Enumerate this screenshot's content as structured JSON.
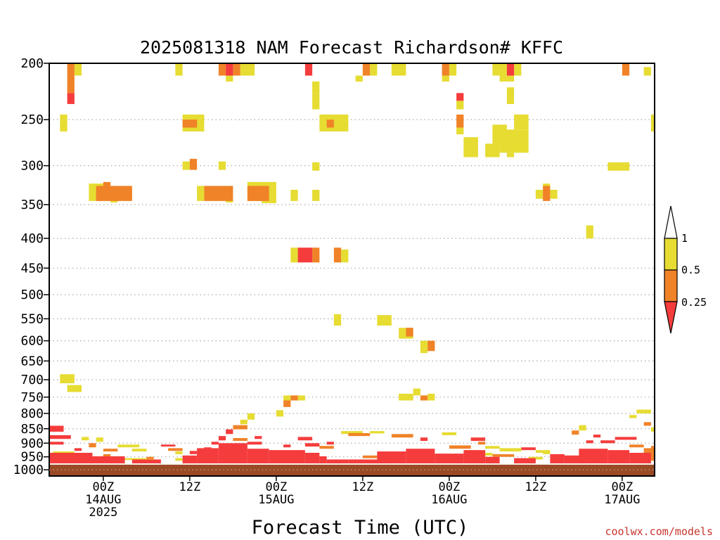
{
  "chart_data": {
    "type": "heatmap",
    "title": "2025081318 NAM Forecast Richardson# KFFC",
    "xlabel": "Forecast Time (UTC)",
    "ylabel": "",
    "credit": "coolwx.com/models",
    "y_axis": {
      "scale": "log",
      "range": [
        1025,
        200
      ],
      "ticks": [
        200,
        250,
        300,
        350,
        400,
        450,
        500,
        550,
        600,
        650,
        700,
        750,
        800,
        850,
        900,
        950,
        1000
      ]
    },
    "x_axis": {
      "unit": "forecast hour from 2025081318",
      "range": [
        -1.5,
        82.5
      ],
      "ticks": [
        {
          "hour": 6,
          "lines": [
            "00Z",
            "14AUG",
            "2025"
          ]
        },
        {
          "hour": 18,
          "lines": [
            "12Z",
            "",
            ""
          ]
        },
        {
          "hour": 30,
          "lines": [
            "00Z",
            "15AUG",
            ""
          ]
        },
        {
          "hour": 42,
          "lines": [
            "12Z",
            "",
            ""
          ]
        },
        {
          "hour": 54,
          "lines": [
            "00Z",
            "16AUG",
            ""
          ]
        },
        {
          "hour": 66,
          "lines": [
            "12Z",
            "",
            ""
          ]
        },
        {
          "hour": 78,
          "lines": [
            "00Z",
            "17AUG",
            ""
          ]
        }
      ]
    },
    "gridlines": "dotted at each pressure tick",
    "ground_color": "#9a4a24",
    "ground_pressure": 980,
    "colorbar": {
      "levels": [
        "1",
        "0.5",
        "0.25"
      ],
      "colors": {
        "lt025": "#f53c3c",
        "p025_05": "#f08228",
        "p05_1": "#e6dc32"
      }
    },
    "cells_encoding": "[forecast_hour_start, hours_wide, pressure_top_hPa, pressure_bottom_hPa, class] where class 1=<0.25, 2=0.25-0.5, 3=0.5-1",
    "cells": [
      [
        1,
        1,
        200,
        210,
        2
      ],
      [
        1,
        1,
        210,
        225,
        2
      ],
      [
        1,
        1,
        225,
        235,
        1
      ],
      [
        2,
        1,
        200,
        210,
        3
      ],
      [
        0,
        1,
        245,
        262,
        3
      ],
      [
        16,
        1,
        200,
        210,
        3
      ],
      [
        17,
        3,
        245,
        262,
        3
      ],
      [
        18,
        1,
        250,
        258,
        2
      ],
      [
        17,
        2,
        250,
        258,
        2
      ],
      [
        22,
        1,
        200,
        210,
        2
      ],
      [
        23,
        1,
        200,
        210,
        1
      ],
      [
        24,
        1,
        200,
        210,
        2
      ],
      [
        23,
        1,
        210,
        215,
        3
      ],
      [
        25,
        2,
        200,
        210,
        3
      ],
      [
        34,
        1,
        200,
        210,
        1
      ],
      [
        35,
        1,
        215,
        225,
        3
      ],
      [
        35,
        1,
        225,
        240,
        3
      ],
      [
        36,
        4,
        245,
        262,
        3
      ],
      [
        37,
        1,
        250,
        258,
        2
      ],
      [
        42,
        1,
        200,
        210,
        2
      ],
      [
        43,
        1,
        200,
        210,
        3
      ],
      [
        41,
        1,
        210,
        215,
        3
      ],
      [
        46,
        2,
        200,
        210,
        3
      ],
      [
        53,
        1,
        200,
        210,
        2
      ],
      [
        54,
        1,
        200,
        210,
        3
      ],
      [
        53,
        1,
        210,
        215,
        3
      ],
      [
        55,
        1,
        225,
        232,
        1
      ],
      [
        55,
        1,
        232,
        240,
        3
      ],
      [
        55,
        1,
        245,
        258,
        2
      ],
      [
        55,
        1,
        258,
        265,
        3
      ],
      [
        56,
        2,
        268,
        290,
        3
      ],
      [
        60,
        2,
        200,
        210,
        3
      ],
      [
        61,
        1,
        210,
        215,
        3
      ],
      [
        62,
        1,
        200,
        210,
        1
      ],
      [
        63,
        1,
        200,
        210,
        3
      ],
      [
        62,
        1,
        210,
        215,
        3
      ],
      [
        62,
        1,
        220,
        235,
        3
      ],
      [
        63,
        2,
        245,
        260,
        3
      ],
      [
        60,
        2,
        255,
        275,
        3
      ],
      [
        59,
        2,
        275,
        290,
        3
      ],
      [
        61,
        4,
        260,
        285,
        3
      ],
      [
        62,
        1,
        285,
        290,
        3
      ],
      [
        78,
        1,
        200,
        210,
        2
      ],
      [
        81,
        1,
        203,
        210,
        3
      ],
      [
        82,
        1,
        245,
        262,
        3
      ],
      [
        17,
        1,
        295,
        305,
        3
      ],
      [
        18,
        1,
        292,
        305,
        2
      ],
      [
        22,
        1,
        295,
        305,
        3
      ],
      [
        35,
        1,
        296,
        306,
        3
      ],
      [
        76,
        3,
        296,
        306,
        3
      ],
      [
        5,
        5,
        325,
        345,
        2
      ],
      [
        6,
        1,
        320,
        327,
        2
      ],
      [
        4,
        2,
        322,
        345,
        3
      ],
      [
        9,
        1,
        330,
        340,
        3
      ],
      [
        7,
        1,
        340,
        347,
        3
      ],
      [
        20,
        4,
        325,
        345,
        2
      ],
      [
        19,
        1,
        325,
        345,
        3
      ],
      [
        23,
        1,
        342,
        347,
        3
      ],
      [
        26,
        3,
        325,
        345,
        2
      ],
      [
        26,
        4,
        320,
        345,
        3
      ],
      [
        28,
        2,
        342,
        348,
        3
      ],
      [
        32,
        1,
        330,
        345,
        3
      ],
      [
        35,
        1,
        330,
        345,
        3
      ],
      [
        67,
        1,
        325,
        345,
        2
      ],
      [
        66,
        1,
        330,
        342,
        3
      ],
      [
        68,
        1,
        330,
        342,
        3
      ],
      [
        67,
        1,
        322,
        327,
        3
      ],
      [
        73,
        1,
        380,
        400,
        3
      ],
      [
        32,
        1,
        415,
        440,
        3
      ],
      [
        33,
        2,
        415,
        440,
        1
      ],
      [
        35,
        1,
        415,
        440,
        2
      ],
      [
        38,
        1,
        415,
        440,
        2
      ],
      [
        39,
        1,
        418,
        440,
        3
      ],
      [
        38,
        1,
        540,
        565,
        3
      ],
      [
        44,
        2,
        542,
        565,
        3
      ],
      [
        47,
        2,
        570,
        595,
        3
      ],
      [
        48,
        1,
        570,
        590,
        2
      ],
      [
        50,
        1,
        600,
        630,
        3
      ],
      [
        51,
        1,
        600,
        625,
        2
      ],
      [
        0,
        2,
        685,
        710,
        3
      ],
      [
        1,
        2,
        715,
        735,
        3
      ],
      [
        47,
        2,
        740,
        760,
        3
      ],
      [
        49,
        1,
        725,
        745,
        3
      ],
      [
        50,
        1,
        745,
        760,
        2
      ],
      [
        51,
        1,
        740,
        760,
        3
      ],
      [
        31,
        1,
        745,
        765,
        3
      ],
      [
        32,
        1,
        745,
        760,
        2
      ],
      [
        33,
        1,
        745,
        760,
        3
      ],
      [
        31,
        1,
        760,
        780,
        2
      ],
      [
        30,
        1,
        790,
        810,
        3
      ],
      [
        26,
        1,
        800,
        820,
        3
      ],
      [
        25,
        1,
        820,
        835,
        3
      ],
      [
        24,
        2,
        838,
        852,
        2
      ],
      [
        23,
        1,
        852,
        868,
        1
      ],
      [
        80,
        2,
        788,
        800,
        3
      ],
      [
        79,
        1,
        805,
        815,
        3
      ],
      [
        81,
        1,
        828,
        840,
        2
      ],
      [
        82,
        1,
        845,
        860,
        3
      ],
      [
        72,
        1,
        838,
        856,
        3
      ],
      [
        71,
        1,
        856,
        870,
        2
      ],
      [
        -1.5,
        2,
        840,
        860,
        1
      ],
      [
        -1.5,
        3,
        872,
        885,
        1
      ],
      [
        -1.5,
        2,
        895,
        905,
        1
      ],
      [
        3,
        1,
        878,
        890,
        3
      ],
      [
        5,
        1,
        880,
        895,
        3
      ],
      [
        4,
        1,
        900,
        915,
        2
      ],
      [
        2,
        1,
        918,
        928,
        1
      ],
      [
        6,
        2,
        920,
        930,
        2
      ],
      [
        8,
        3,
        905,
        915,
        3
      ],
      [
        10,
        2,
        920,
        930,
        3
      ],
      [
        14,
        2,
        905,
        912,
        1
      ],
      [
        15,
        2,
        918,
        928,
        2
      ],
      [
        16,
        1,
        930,
        940,
        3
      ],
      [
        39,
        3,
        858,
        868,
        3
      ],
      [
        40,
        3,
        865,
        875,
        2
      ],
      [
        43,
        2,
        858,
        866,
        3
      ],
      [
        46,
        3,
        868,
        880,
        2
      ],
      [
        50,
        1,
        880,
        892,
        1
      ],
      [
        53,
        2,
        862,
        872,
        3
      ],
      [
        57,
        2,
        880,
        892,
        1
      ],
      [
        58,
        1,
        895,
        905,
        2
      ],
      [
        59,
        2,
        910,
        920,
        3
      ],
      [
        61,
        3,
        918,
        930,
        3
      ],
      [
        64,
        2,
        915,
        925,
        1
      ],
      [
        66,
        2,
        925,
        935,
        3
      ],
      [
        77,
        3,
        878,
        888,
        1
      ],
      [
        75,
        2,
        890,
        900,
        1
      ],
      [
        79,
        2,
        905,
        915,
        2
      ],
      [
        81,
        2,
        918,
        928,
        2
      ],
      [
        74,
        1,
        870,
        880,
        1
      ],
      [
        73,
        1,
        890,
        900,
        1
      ],
      [
        33,
        2,
        878,
        890,
        1
      ],
      [
        34,
        2,
        900,
        912,
        1
      ],
      [
        36,
        2,
        910,
        920,
        2
      ],
      [
        37,
        1,
        895,
        905,
        1
      ],
      [
        -1.5,
        6,
        935,
        975,
        1
      ],
      [
        4,
        5,
        948,
        975,
        1
      ],
      [
        -1,
        3,
        930,
        940,
        3
      ],
      [
        10,
        4,
        960,
        975,
        1
      ],
      [
        9,
        4,
        955,
        962,
        3
      ],
      [
        16,
        1,
        955,
        965,
        3
      ],
      [
        17,
        2,
        945,
        975,
        1
      ],
      [
        19,
        3,
        918,
        975,
        1
      ],
      [
        22,
        4,
        900,
        975,
        1
      ],
      [
        26,
        3,
        920,
        975,
        1
      ],
      [
        29,
        5,
        925,
        975,
        1
      ],
      [
        21,
        1,
        895,
        905,
        1
      ],
      [
        34,
        2,
        935,
        975,
        1
      ],
      [
        36,
        1,
        948,
        975,
        1
      ],
      [
        37,
        3,
        960,
        975,
        1
      ],
      [
        40,
        6,
        960,
        975,
        1
      ],
      [
        42,
        2,
        945,
        955,
        2
      ],
      [
        44,
        4,
        930,
        975,
        1
      ],
      [
        48,
        4,
        920,
        975,
        1
      ],
      [
        52,
        4,
        938,
        975,
        1
      ],
      [
        56,
        3,
        925,
        975,
        1
      ],
      [
        59,
        2,
        950,
        975,
        1
      ],
      [
        60,
        3,
        940,
        950,
        2
      ],
      [
        58,
        2,
        935,
        945,
        3
      ],
      [
        63,
        3,
        955,
        975,
        1
      ],
      [
        65,
        2,
        950,
        960,
        3
      ],
      [
        67,
        1,
        930,
        940,
        3
      ],
      [
        68,
        2,
        940,
        975,
        1
      ],
      [
        70,
        3,
        945,
        975,
        1
      ],
      [
        72,
        4,
        920,
        975,
        1
      ],
      [
        76,
        3,
        925,
        975,
        1
      ],
      [
        79,
        3,
        935,
        975,
        1
      ],
      [
        81,
        1.5,
        928,
        965,
        2
      ],
      [
        82,
        0.5,
        910,
        930,
        2
      ],
      [
        54,
        3,
        908,
        920,
        2
      ],
      [
        56,
        2,
        925,
        935,
        3
      ],
      [
        24,
        2,
        882,
        892,
        2
      ],
      [
        26,
        2,
        895,
        905,
        1
      ],
      [
        27,
        1,
        875,
        885,
        1
      ],
      [
        31,
        1,
        905,
        915,
        1
      ],
      [
        22,
        1,
        875,
        890,
        1
      ],
      [
        20,
        1,
        915,
        925,
        1
      ],
      [
        18,
        1,
        928,
        940,
        1
      ],
      [
        12,
        1,
        950,
        958,
        2
      ],
      [
        6,
        1,
        940,
        950,
        2
      ],
      [
        3,
        1,
        945,
        955,
        2
      ]
    ]
  }
}
